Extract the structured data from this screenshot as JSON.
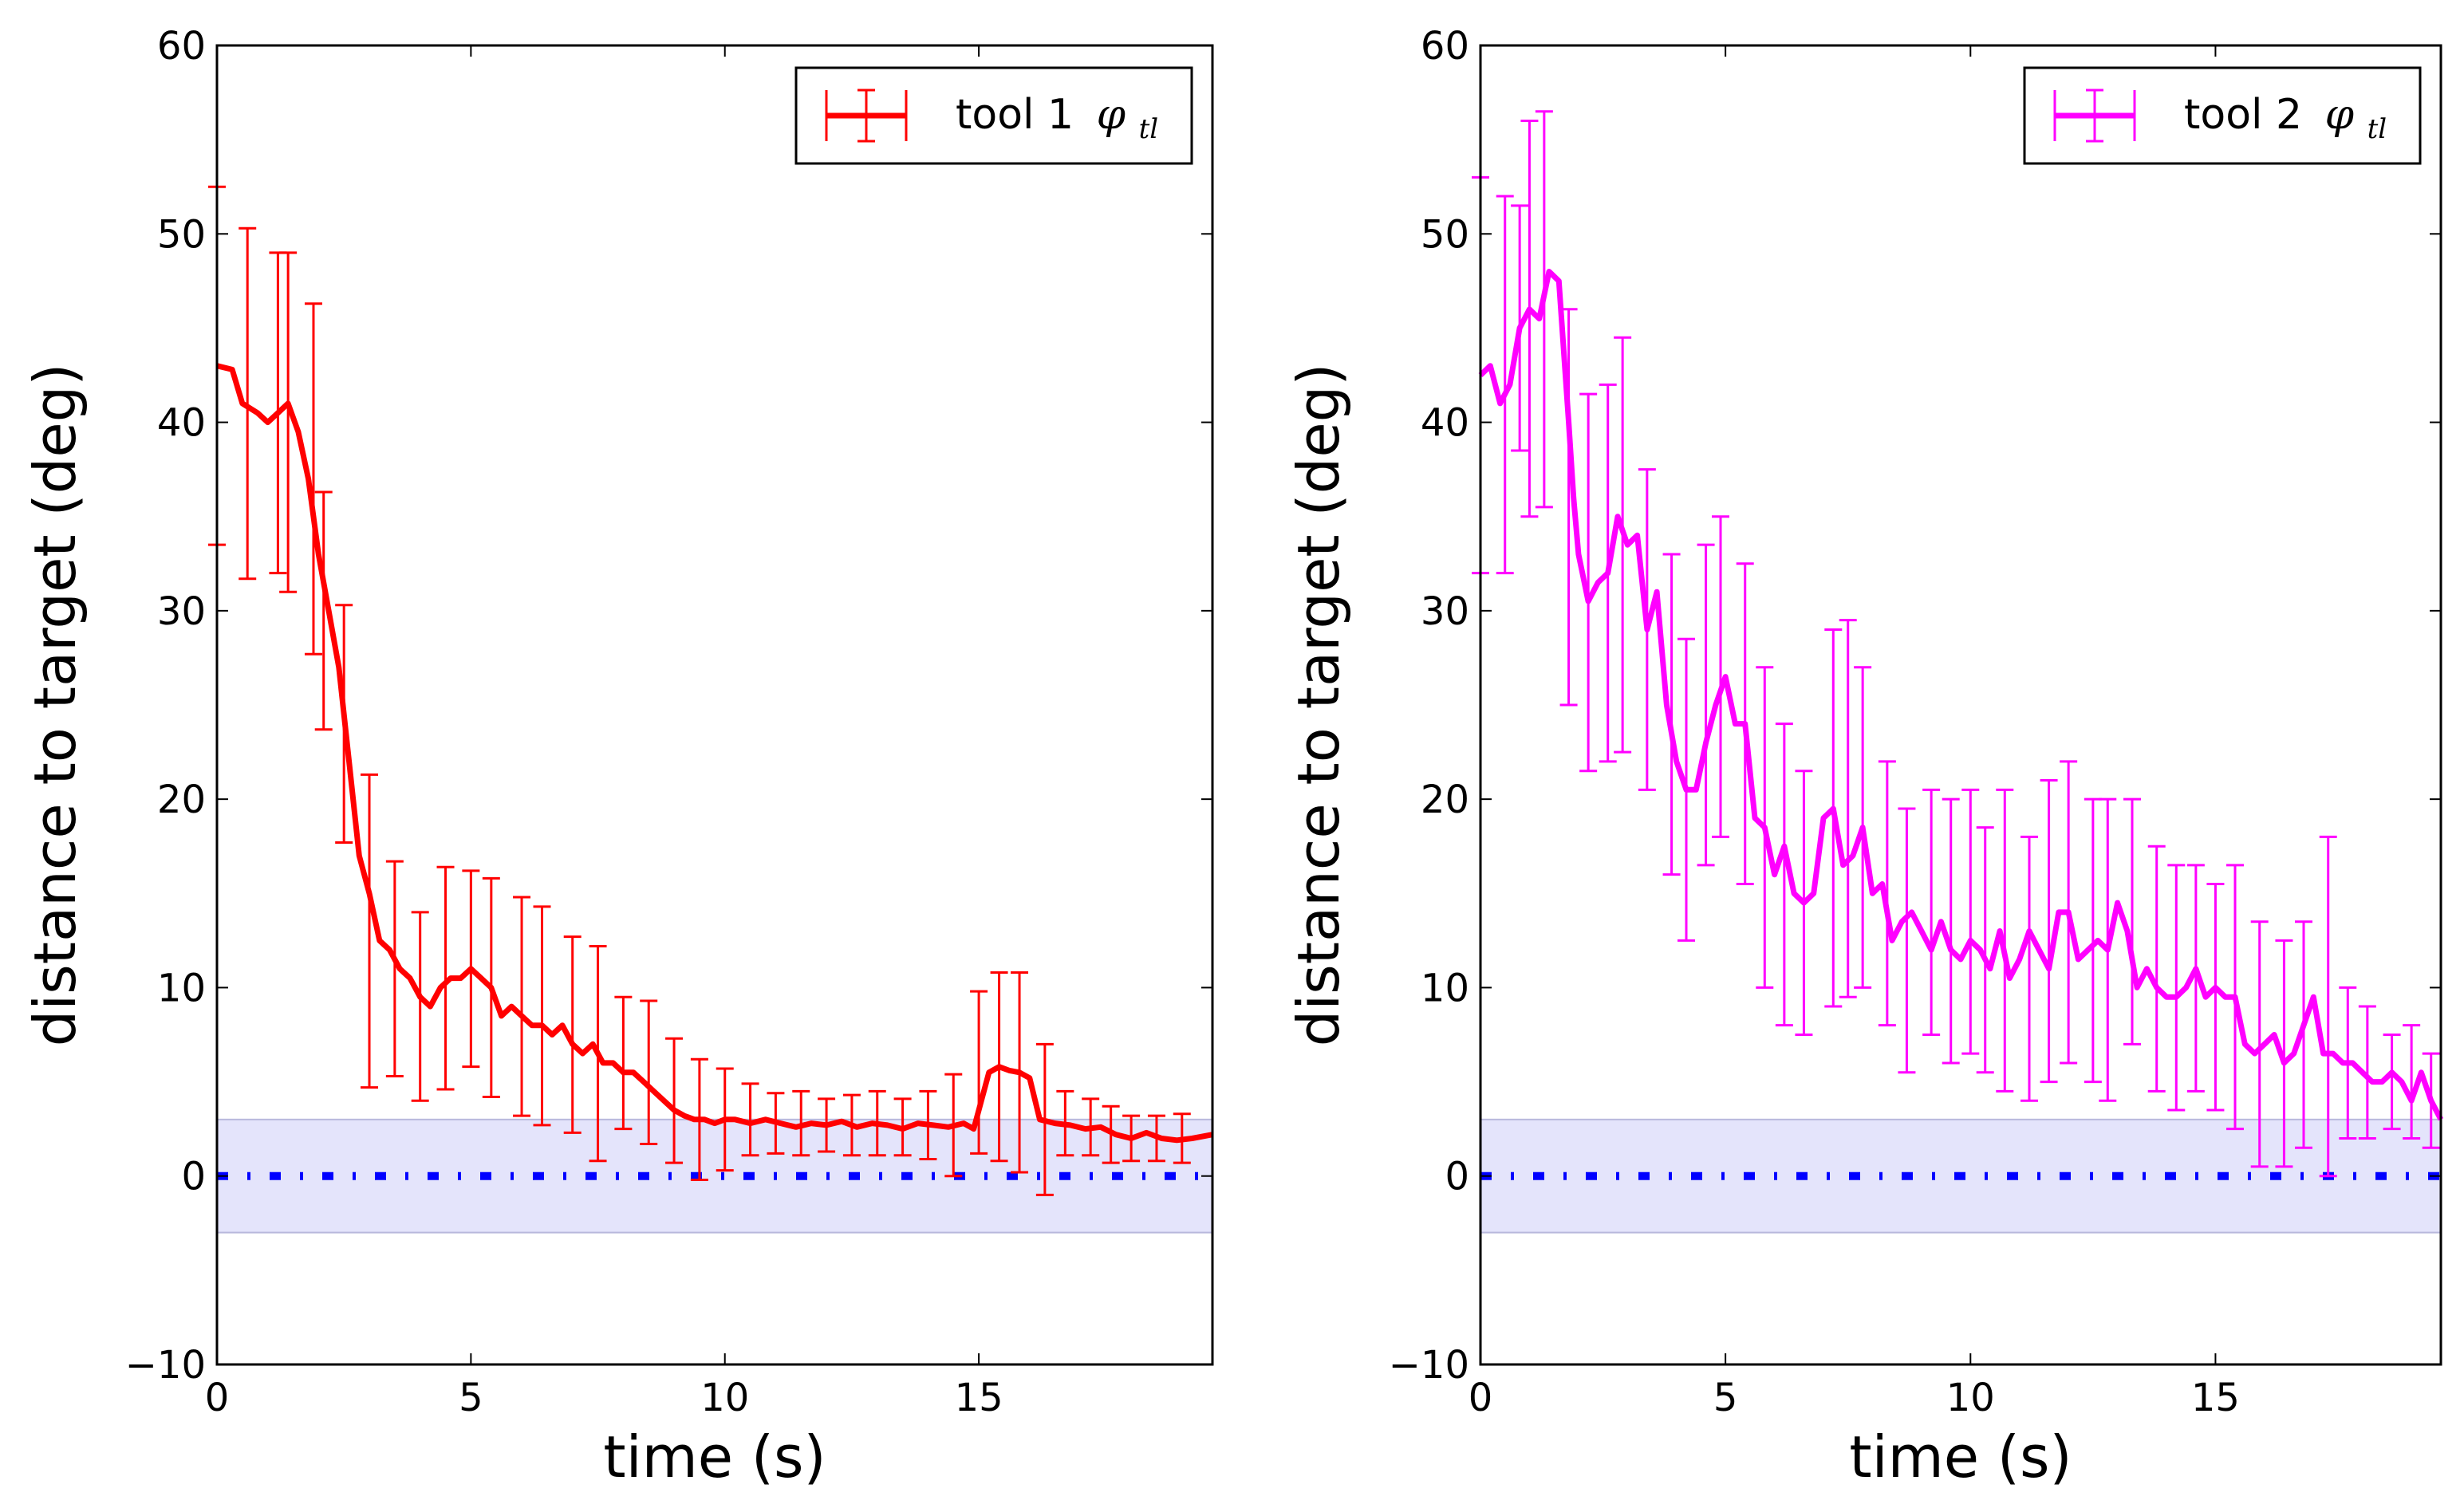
{
  "chart_data": [
    {
      "type": "line",
      "panel": "left",
      "xlabel": "time (s)",
      "ylabel": "distance to target (deg)",
      "xlim": [
        0,
        19.6
      ],
      "ylim": [
        -10,
        60
      ],
      "xticks": [
        0,
        5,
        10,
        15
      ],
      "yticks": [
        -10,
        0,
        10,
        20,
        30,
        40,
        50,
        60
      ],
      "xtick_labels": [
        "0",
        "5",
        "10",
        "15"
      ],
      "ytick_labels": [
        "−10",
        "0",
        "10",
        "20",
        "30",
        "40",
        "50",
        "60"
      ],
      "legend": {
        "label": "tool 1",
        "symbol": "φ",
        "subscript": "tl",
        "placement": "top-right"
      },
      "tolerance_band": [
        -3,
        3
      ],
      "target_line": 0,
      "colors": {
        "series": "#ff0000",
        "band": "#e4e4fb",
        "band_edge": "#b8b8dc",
        "target": "#0000ff"
      },
      "series": [
        {
          "name": "tool 1 φ_tl",
          "x": [
            0.0,
            0.3,
            0.5,
            0.8,
            1.0,
            1.2,
            1.4,
            1.6,
            1.8,
            2.0,
            2.2,
            2.4,
            2.6,
            2.8,
            3.0,
            3.2,
            3.4,
            3.6,
            3.8,
            4.0,
            4.2,
            4.4,
            4.6,
            4.8,
            5.0,
            5.2,
            5.4,
            5.6,
            5.8,
            6.0,
            6.2,
            6.4,
            6.6,
            6.8,
            7.0,
            7.2,
            7.4,
            7.6,
            7.8,
            8.0,
            8.2,
            8.4,
            8.6,
            8.8,
            9.0,
            9.2,
            9.4,
            9.6,
            9.8,
            10.0,
            10.2,
            10.5,
            10.8,
            11.1,
            11.4,
            11.7,
            12.0,
            12.3,
            12.6,
            12.9,
            13.2,
            13.5,
            13.8,
            14.1,
            14.4,
            14.7,
            14.9,
            15.0,
            15.2,
            15.4,
            15.6,
            15.8,
            16.0,
            16.2,
            16.5,
            16.8,
            17.1,
            17.4,
            17.7,
            18.0,
            18.3,
            18.6,
            18.9,
            19.2,
            19.6
          ],
          "y": [
            43.0,
            42.8,
            41.0,
            40.5,
            40.0,
            40.5,
            41.0,
            39.5,
            37.0,
            33.0,
            30.0,
            27.0,
            22.0,
            17.0,
            15.0,
            12.5,
            12.0,
            11.0,
            10.5,
            9.5,
            9.0,
            10.0,
            10.5,
            10.5,
            11.0,
            10.5,
            10.0,
            8.5,
            9.0,
            8.5,
            8.0,
            8.0,
            7.5,
            8.0,
            7.0,
            6.5,
            7.0,
            6.0,
            6.0,
            5.5,
            5.5,
            5.0,
            4.5,
            4.0,
            3.5,
            3.2,
            3.0,
            3.0,
            2.8,
            3.0,
            3.0,
            2.8,
            3.0,
            2.8,
            2.6,
            2.8,
            2.7,
            2.9,
            2.6,
            2.8,
            2.7,
            2.5,
            2.8,
            2.7,
            2.6,
            2.8,
            2.5,
            3.5,
            5.5,
            5.8,
            5.6,
            5.5,
            5.2,
            3.0,
            2.8,
            2.7,
            2.5,
            2.6,
            2.2,
            2.0,
            2.3,
            2.0,
            1.9,
            2.0,
            2.2
          ],
          "error_x": [
            0.0,
            0.6,
            1.2,
            1.4,
            1.9,
            2.1,
            2.5,
            3.0,
            3.5,
            4.0,
            4.5,
            5.0,
            5.4,
            6.0,
            6.4,
            7.0,
            7.5,
            8.0,
            8.5,
            9.0,
            9.5,
            10.0,
            10.5,
            11.0,
            11.5,
            12.0,
            12.5,
            13.0,
            13.5,
            14.0,
            14.5,
            15.0,
            15.4,
            15.8,
            16.3,
            16.7,
            17.2,
            17.6,
            18.0,
            18.5,
            19.0
          ],
          "error_y": [
            43.0,
            41.0,
            40.5,
            40.0,
            37.0,
            30.0,
            24.0,
            13.0,
            11.0,
            9.0,
            10.5,
            11.0,
            10.0,
            9.0,
            8.5,
            7.5,
            6.5,
            6.0,
            5.5,
            4.0,
            3.0,
            3.0,
            3.0,
            2.8,
            2.8,
            2.7,
            2.7,
            2.8,
            2.6,
            2.7,
            2.7,
            5.5,
            5.8,
            5.5,
            3.0,
            2.8,
            2.6,
            2.2,
            2.0,
            2.0,
            2.0
          ],
          "error_dy": [
            9.5,
            9.3,
            8.5,
            9.0,
            9.3,
            6.3,
            6.3,
            8.3,
            5.7,
            5.0,
            5.9,
            5.2,
            5.8,
            5.8,
            5.8,
            5.2,
            5.7,
            3.5,
            3.8,
            3.3,
            3.2,
            2.7,
            1.9,
            1.6,
            1.7,
            1.4,
            1.6,
            1.7,
            1.5,
            1.8,
            2.7,
            4.3,
            5.0,
            5.3,
            4.0,
            1.7,
            1.5,
            1.5,
            1.2,
            1.2,
            1.3
          ]
        }
      ]
    },
    {
      "type": "line",
      "panel": "right",
      "xlabel": "time (s)",
      "ylabel": "distance to target (deg)",
      "xlim": [
        0,
        19.6
      ],
      "ylim": [
        -10,
        60
      ],
      "xticks": [
        0,
        5,
        10,
        15
      ],
      "yticks": [
        -10,
        0,
        10,
        20,
        30,
        40,
        50,
        60
      ],
      "xtick_labels": [
        "0",
        "5",
        "10",
        "15"
      ],
      "ytick_labels": [
        "−10",
        "0",
        "10",
        "20",
        "30",
        "40",
        "50",
        "60"
      ],
      "legend": {
        "label": "tool 2",
        "symbol": "φ",
        "subscript": "tl",
        "placement": "top-right"
      },
      "tolerance_band": [
        -3,
        3
      ],
      "target_line": 0,
      "colors": {
        "series": "#ff00ff",
        "band": "#e4e4fb",
        "band_edge": "#b8b8dc",
        "target": "#0000ff"
      },
      "series": [
        {
          "name": "tool 2 φ_tl",
          "x": [
            0.0,
            0.2,
            0.4,
            0.6,
            0.8,
            1.0,
            1.2,
            1.4,
            1.6,
            1.8,
            1.9,
            2.0,
            2.2,
            2.4,
            2.6,
            2.8,
            3.0,
            3.2,
            3.4,
            3.6,
            3.8,
            4.0,
            4.2,
            4.4,
            4.6,
            4.8,
            5.0,
            5.2,
            5.4,
            5.6,
            5.8,
            6.0,
            6.2,
            6.4,
            6.6,
            6.8,
            7.0,
            7.2,
            7.4,
            7.6,
            7.8,
            8.0,
            8.2,
            8.4,
            8.6,
            8.8,
            9.0,
            9.2,
            9.4,
            9.6,
            9.8,
            10.0,
            10.2,
            10.4,
            10.6,
            10.8,
            11.0,
            11.2,
            11.4,
            11.6,
            11.8,
            12.0,
            12.2,
            12.4,
            12.6,
            12.8,
            13.0,
            13.2,
            13.4,
            13.6,
            13.8,
            14.0,
            14.2,
            14.4,
            14.6,
            14.8,
            15.0,
            15.2,
            15.4,
            15.6,
            15.8,
            16.0,
            16.2,
            16.4,
            16.6,
            16.8,
            17.0,
            17.2,
            17.4,
            17.6,
            17.8,
            18.0,
            18.2,
            18.4,
            18.6,
            18.8,
            19.0,
            19.2,
            19.4,
            19.6
          ],
          "y": [
            42.5,
            43.0,
            41.0,
            42.0,
            45.0,
            46.0,
            45.5,
            48.0,
            47.5,
            40.0,
            36.0,
            33.0,
            30.5,
            31.5,
            32.0,
            35.0,
            33.5,
            34.0,
            29.0,
            31.0,
            25.0,
            22.0,
            20.5,
            20.5,
            23.0,
            25.0,
            26.5,
            24.0,
            24.0,
            19.0,
            18.5,
            16.0,
            17.5,
            15.0,
            14.5,
            15.0,
            19.0,
            19.5,
            16.5,
            17.0,
            18.5,
            15.0,
            15.5,
            12.5,
            13.5,
            14.0,
            13.0,
            12.0,
            13.5,
            12.0,
            11.5,
            12.5,
            12.0,
            11.0,
            13.0,
            10.5,
            11.5,
            13.0,
            12.0,
            11.0,
            14.0,
            14.0,
            11.5,
            12.0,
            12.5,
            12.0,
            14.5,
            13.0,
            10.0,
            11.0,
            10.0,
            9.5,
            9.5,
            10.0,
            11.0,
            9.5,
            10.0,
            9.5,
            9.5,
            7.0,
            6.5,
            7.0,
            7.5,
            6.0,
            6.5,
            8.0,
            9.5,
            6.5,
            6.5,
            6.0,
            6.0,
            5.5,
            5.0,
            5.0,
            5.5,
            5.0,
            4.0,
            5.5,
            4.0,
            3.0
          ],
          "error_x": [
            0.0,
            0.5,
            0.8,
            1.0,
            1.3,
            1.8,
            2.2,
            2.6,
            2.9,
            3.4,
            3.9,
            4.2,
            4.6,
            4.9,
            5.4,
            5.8,
            6.2,
            6.6,
            7.2,
            7.5,
            7.8,
            8.3,
            8.7,
            9.2,
            9.6,
            10.0,
            10.3,
            10.7,
            11.2,
            11.6,
            12.0,
            12.5,
            12.8,
            13.3,
            13.8,
            14.2,
            14.6,
            15.0,
            15.4,
            15.9,
            16.4,
            16.8,
            17.3,
            17.7,
            18.1,
            18.6,
            19.0,
            19.4
          ],
          "error_y": [
            42.5,
            42.0,
            45.0,
            45.5,
            46.0,
            35.5,
            31.5,
            32.0,
            33.5,
            29.0,
            24.5,
            20.5,
            25.0,
            26.5,
            24.0,
            18.5,
            16.0,
            14.5,
            19.0,
            19.5,
            18.5,
            15.0,
            12.5,
            14.0,
            13.0,
            13.5,
            12.0,
            12.5,
            11.0,
            13.0,
            14.0,
            12.5,
            12.0,
            13.5,
            11.0,
            10.0,
            10.5,
            9.5,
            9.5,
            7.0,
            6.5,
            7.5,
            9.0,
            6.0,
            5.5,
            5.0,
            5.0,
            4.0
          ],
          "error_dy": [
            10.5,
            10.0,
            6.5,
            10.5,
            10.5,
            10.5,
            10.0,
            10.0,
            11.0,
            8.5,
            8.5,
            8.0,
            8.5,
            8.5,
            8.5,
            8.5,
            8.0,
            7.0,
            10.0,
            10.0,
            8.5,
            7.0,
            7.0,
            6.5,
            7.0,
            7.0,
            6.5,
            8.0,
            7.0,
            8.0,
            8.0,
            7.5,
            8.0,
            6.5,
            6.5,
            6.5,
            6.0,
            6.0,
            7.0,
            6.5,
            6.0,
            6.0,
            9.0,
            4.0,
            3.5,
            2.5,
            3.0,
            2.5
          ]
        }
      ]
    }
  ]
}
